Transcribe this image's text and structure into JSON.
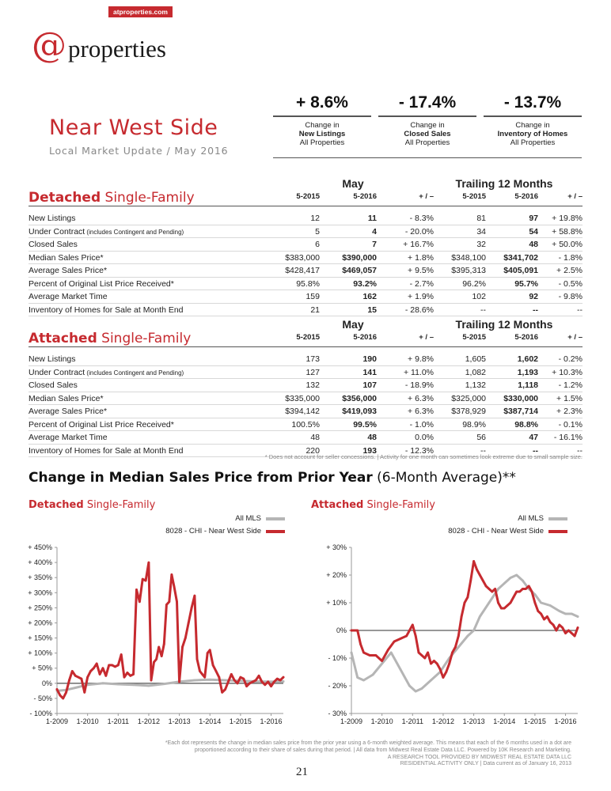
{
  "header": {
    "site_tag": "atproperties.com",
    "brand_at": "@",
    "brand_word": "properties"
  },
  "region": {
    "title": "Near West Side",
    "subtitle": "Local Market Update / May 2016"
  },
  "kpis": [
    {
      "value": "+ 8.6%",
      "line1": "Change in",
      "line2": "New Listings",
      "line3": "All Properties"
    },
    {
      "value": "- 17.4%",
      "line1": "Change in",
      "line2": "Closed Sales",
      "line3": "All Properties"
    },
    {
      "value": "- 13.7%",
      "line1": "Change in",
      "line2": "Inventory of Homes",
      "line3": "All Properties"
    }
  ],
  "table_headers": {
    "group_month": "May",
    "group_trailing": "Trailing 12 Months",
    "cols": [
      "5-2015",
      "5-2016",
      "+ / –",
      "5-2015",
      "5-2016",
      "+ / –"
    ]
  },
  "detached": {
    "title_bold": "Detached",
    "title_rest": " Single-Family",
    "rows": [
      {
        "label": "New Listings",
        "note": "",
        "v": [
          "12",
          "11",
          "- 8.3%",
          "81",
          "97",
          "+ 19.8%"
        ]
      },
      {
        "label": "Under Contract",
        "note": " (includes Contingent and Pending)",
        "v": [
          "5",
          "4",
          "- 20.0%",
          "34",
          "54",
          "+ 58.8%"
        ]
      },
      {
        "label": "Closed Sales",
        "note": "",
        "v": [
          "6",
          "7",
          "+ 16.7%",
          "32",
          "48",
          "+ 50.0%"
        ]
      },
      {
        "label": "Median Sales Price*",
        "note": "",
        "v": [
          "$383,000",
          "$390,000",
          "+ 1.8%",
          "$348,100",
          "$341,702",
          "- 1.8%"
        ]
      },
      {
        "label": "Average Sales Price*",
        "note": "",
        "v": [
          "$428,417",
          "$469,057",
          "+ 9.5%",
          "$395,313",
          "$405,091",
          "+ 2.5%"
        ]
      },
      {
        "label": "Percent of Original List Price Received*",
        "note": "",
        "v": [
          "95.8%",
          "93.2%",
          "- 2.7%",
          "96.2%",
          "95.7%",
          "- 0.5%"
        ]
      },
      {
        "label": "Average Market Time",
        "note": "",
        "v": [
          "159",
          "162",
          "+ 1.9%",
          "102",
          "92",
          "- 9.8%"
        ]
      },
      {
        "label": "Inventory of Homes for Sale at Month End",
        "note": "",
        "v": [
          "21",
          "15",
          "- 28.6%",
          "--",
          "--",
          "--"
        ]
      }
    ]
  },
  "attached": {
    "title_bold": "Attached",
    "title_rest": " Single-Family",
    "rows": [
      {
        "label": "New Listings",
        "note": "",
        "v": [
          "173",
          "190",
          "+ 9.8%",
          "1,605",
          "1,602",
          "- 0.2%"
        ]
      },
      {
        "label": "Under Contract",
        "note": " (includes Contingent and Pending)",
        "v": [
          "127",
          "141",
          "+ 11.0%",
          "1,082",
          "1,193",
          "+ 10.3%"
        ]
      },
      {
        "label": "Closed Sales",
        "note": "",
        "v": [
          "132",
          "107",
          "- 18.9%",
          "1,132",
          "1,118",
          "- 1.2%"
        ]
      },
      {
        "label": "Median Sales Price*",
        "note": "",
        "v": [
          "$335,000",
          "$356,000",
          "+ 6.3%",
          "$325,000",
          "$330,000",
          "+ 1.5%"
        ]
      },
      {
        "label": "Average Sales Price*",
        "note": "",
        "v": [
          "$394,142",
          "$419,093",
          "+ 6.3%",
          "$378,929",
          "$387,714",
          "+ 2.3%"
        ]
      },
      {
        "label": "Percent of Original List Price Received*",
        "note": "",
        "v": [
          "100.5%",
          "99.5%",
          "- 1.0%",
          "98.9%",
          "98.8%",
          "- 0.1%"
        ]
      },
      {
        "label": "Average Market Time",
        "note": "",
        "v": [
          "48",
          "48",
          "0.0%",
          "56",
          "47",
          "- 16.1%"
        ]
      },
      {
        "label": "Inventory of Homes for Sale at Month End",
        "note": "",
        "v": [
          "220",
          "193",
          "- 12.3%",
          "--",
          "--",
          "--"
        ]
      }
    ]
  },
  "footnote_table": "* Does not account for seller concessions. | Activity for one month can sometimes look extreme due to small sample size.",
  "charts_section": {
    "title_bold": "Change in Median Sales Price from Prior Year",
    "title_rest": " (6-Month Average)**"
  },
  "colors": {
    "brand_red": "#c62a2f",
    "all_mls": "#b5b5b5",
    "local": "#c62a2f"
  },
  "chart_data": [
    {
      "type": "line",
      "title_bold": "Detached",
      "title_rest": " Single-Family",
      "x_ticks": [
        "1-2009",
        "1-2010",
        "1-2011",
        "1-2012",
        "1-2013",
        "1-2014",
        "1-2015",
        "1-2016"
      ],
      "x_start": 2009.0,
      "x_end": 2016.4,
      "ylim": [
        -100,
        450
      ],
      "y_ticks": [
        -100,
        -50,
        0,
        50,
        100,
        150,
        200,
        250,
        300,
        350,
        400,
        450
      ],
      "y_tick_labels": [
        "- 100%",
        "- 50%",
        "0%",
        "+ 50%",
        "+ 100%",
        "+ 150%",
        "+ 200%",
        "+ 250%",
        "+ 300%",
        "+ 350%",
        "+ 400%",
        "+ 450%"
      ],
      "series": [
        {
          "name": "All MLS",
          "color": "#b5b5b5",
          "x": [
            2009.0,
            2009.3,
            2009.6,
            2010.0,
            2010.5,
            2011.0,
            2011.5,
            2012.0,
            2012.5,
            2013.0,
            2013.5,
            2014.0,
            2014.5,
            2015.0,
            2015.5,
            2016.0,
            2016.4
          ],
          "y": [
            -25,
            -22,
            -15,
            -5,
            0,
            -3,
            -5,
            -8,
            -2,
            5,
            10,
            12,
            10,
            8,
            6,
            5,
            6
          ]
        },
        {
          "name": "8028 - CHI - Near West Side",
          "color": "#c62a2f",
          "x": [
            2009.0,
            2009.1,
            2009.2,
            2009.3,
            2009.4,
            2009.5,
            2009.6,
            2009.7,
            2009.8,
            2009.9,
            2010.0,
            2010.1,
            2010.2,
            2010.3,
            2010.4,
            2010.5,
            2010.6,
            2010.7,
            2010.8,
            2010.9,
            2011.0,
            2011.1,
            2011.2,
            2011.3,
            2011.4,
            2011.5,
            2011.6,
            2011.7,
            2011.8,
            2011.9,
            2012.0,
            2012.08,
            2012.17,
            2012.25,
            2012.33,
            2012.42,
            2012.5,
            2012.58,
            2012.67,
            2012.75,
            2012.83,
            2012.92,
            2013.0,
            2013.1,
            2013.2,
            2013.3,
            2013.4,
            2013.5,
            2013.58,
            2013.67,
            2013.75,
            2013.83,
            2013.92,
            2014.0,
            2014.1,
            2014.2,
            2014.3,
            2014.4,
            2014.5,
            2014.6,
            2014.7,
            2014.8,
            2014.9,
            2015.0,
            2015.1,
            2015.2,
            2015.3,
            2015.4,
            2015.5,
            2015.6,
            2015.7,
            2015.8,
            2015.9,
            2016.0,
            2016.1,
            2016.2,
            2016.3,
            2016.4
          ],
          "y": [
            -20,
            -40,
            -50,
            -30,
            10,
            40,
            25,
            20,
            15,
            -30,
            20,
            40,
            50,
            65,
            30,
            50,
            25,
            60,
            60,
            55,
            60,
            95,
            20,
            35,
            25,
            30,
            310,
            270,
            345,
            340,
            400,
            10,
            70,
            80,
            120,
            90,
            130,
            260,
            270,
            360,
            320,
            270,
            5,
            120,
            150,
            200,
            250,
            290,
            80,
            40,
            30,
            20,
            100,
            110,
            60,
            40,
            20,
            -30,
            -20,
            5,
            30,
            10,
            0,
            20,
            15,
            -10,
            0,
            5,
            10,
            25,
            5,
            -5,
            5,
            -10,
            5,
            15,
            10,
            20
          ]
        }
      ]
    },
    {
      "type": "line",
      "title_bold": "Attached",
      "title_rest": " Single-Family",
      "x_ticks": [
        "1-2009",
        "1-2010",
        "1-2011",
        "1-2012",
        "1-2013",
        "1-2014",
        "1-2015",
        "1-2016"
      ],
      "x_start": 2009.0,
      "x_end": 2016.4,
      "ylim": [
        -30,
        30
      ],
      "y_ticks": [
        -30,
        -20,
        -10,
        0,
        10,
        20,
        30
      ],
      "y_tick_labels": [
        "- 30%",
        "- 20%",
        "- 10%",
        "0%",
        "+ 10%",
        "+ 20%",
        "+ 30%"
      ],
      "series": [
        {
          "name": "All MLS",
          "color": "#b5b5b5",
          "x": [
            2009.0,
            2009.2,
            2009.4,
            2009.7,
            2010.0,
            2010.3,
            2010.6,
            2010.9,
            2011.1,
            2011.3,
            2011.6,
            2011.9,
            2012.2,
            2012.5,
            2012.8,
            2013.0,
            2013.2,
            2013.5,
            2013.8,
            2014.0,
            2014.2,
            2014.4,
            2014.6,
            2014.8,
            2015.0,
            2015.2,
            2015.5,
            2015.8,
            2016.0,
            2016.2,
            2016.4
          ],
          "y": [
            -8,
            -17,
            -18,
            -16,
            -12,
            -8,
            -14,
            -20,
            -22,
            -21,
            -18,
            -15,
            -10,
            -6,
            -2,
            0,
            5,
            10,
            15,
            17,
            19,
            20,
            18,
            15,
            13,
            10,
            9,
            7,
            6,
            6,
            5
          ]
        },
        {
          "name": "8028 - CHI - Near West Side",
          "color": "#c62a2f",
          "x": [
            2009.0,
            2009.1,
            2009.2,
            2009.3,
            2009.4,
            2009.6,
            2009.8,
            2010.0,
            2010.2,
            2010.4,
            2010.6,
            2010.8,
            2011.0,
            2011.1,
            2011.2,
            2011.3,
            2011.4,
            2011.5,
            2011.6,
            2011.7,
            2011.8,
            2011.9,
            2012.0,
            2012.1,
            2012.2,
            2012.3,
            2012.4,
            2012.5,
            2012.6,
            2012.7,
            2012.8,
            2012.9,
            2013.0,
            2013.1,
            2013.2,
            2013.3,
            2013.4,
            2013.5,
            2013.6,
            2013.7,
            2013.8,
            2013.9,
            2014.0,
            2014.1,
            2014.2,
            2014.3,
            2014.4,
            2014.5,
            2014.6,
            2014.7,
            2014.8,
            2014.9,
            2015.0,
            2015.1,
            2015.2,
            2015.3,
            2015.4,
            2015.5,
            2015.6,
            2015.7,
            2015.8,
            2015.9,
            2016.0,
            2016.1,
            2016.2,
            2016.3,
            2016.4
          ],
          "y": [
            0,
            0,
            0,
            -5,
            -8,
            -9,
            -9,
            -11,
            -7,
            -4,
            -3,
            -2,
            2,
            -2,
            -8,
            -9,
            -10,
            -8,
            -12,
            -11,
            -12,
            -14,
            -17,
            -15,
            -12,
            -8,
            -6,
            -2,
            5,
            10,
            12,
            18,
            25,
            22,
            20,
            18,
            16,
            15,
            14,
            15,
            10,
            8,
            8,
            9,
            10,
            12,
            14,
            14,
            15,
            15,
            16,
            14,
            10,
            7,
            6,
            4,
            5,
            3,
            2,
            0,
            2,
            1,
            -1,
            0,
            -1,
            -2,
            1
          ]
        }
      ]
    }
  ],
  "footer": {
    "note1": "*Each dot represents the change in median sales price from the prior year using a 6-month weighted average. This means that each of the 6 months used in a dot are",
    "note2": "proportioned according to their share of sales during that period. | All data from Midwest Real Estate Data LLC. Powered by 10K Research and Marketing.",
    "note3": "A RESEARCH TOOL PROVIDED BY MIDWEST REAL ESTATE DATA LLC",
    "note4": "RESIDENTIAL ACTIVITY ONLY | Data current as of January 16, 2013",
    "page_number": "21"
  }
}
